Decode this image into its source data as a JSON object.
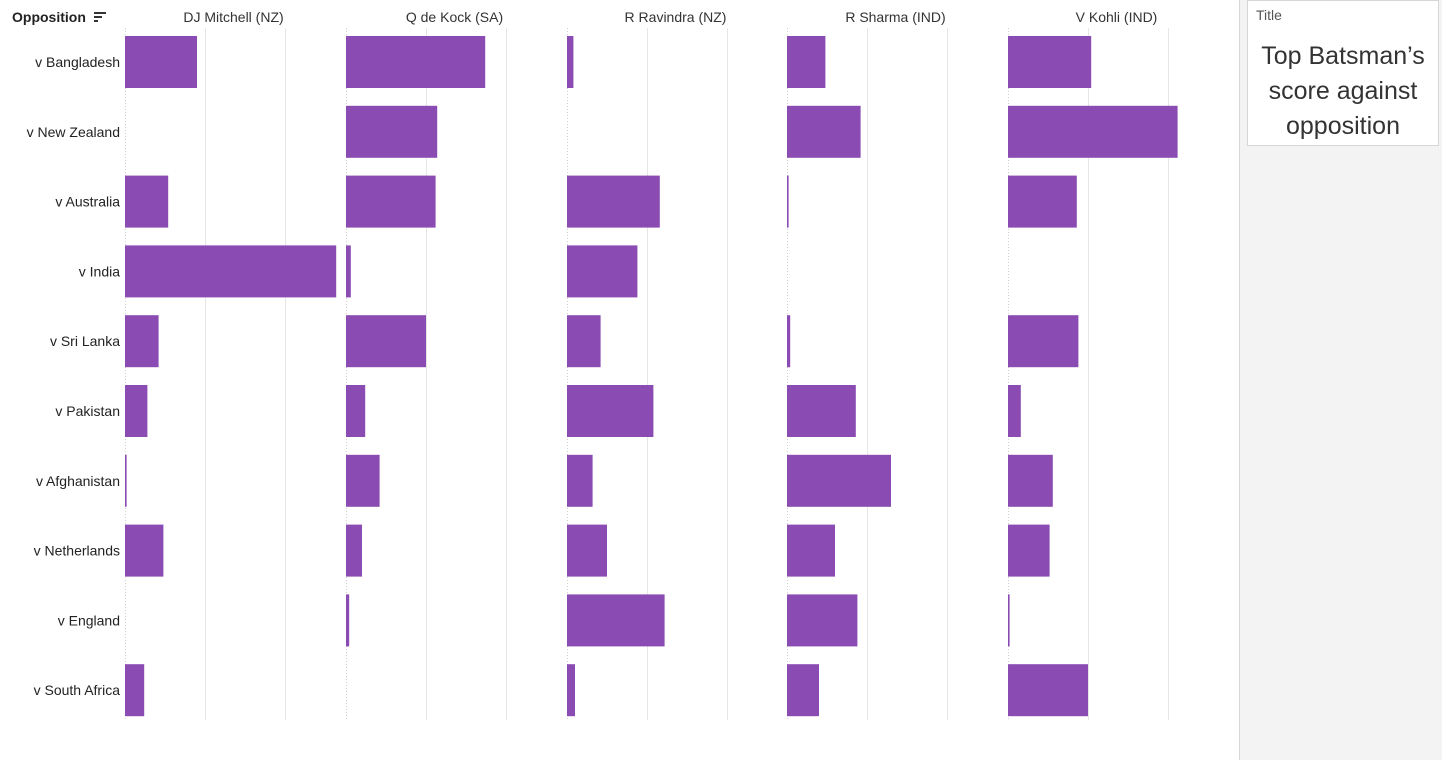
{
  "row_header": "Opposition",
  "panel": {
    "card_label": "Title",
    "card_text": "Top Batsman’s score against opposition"
  },
  "colors": {
    "bar": "#8a4bb2",
    "grid": "#e6e6e6",
    "axis": "#d0d0d0",
    "side_bg": "#f3f3f3"
  },
  "chart_data": {
    "type": "bar",
    "orientation": "horizontal",
    "columns": [
      "DJ Mitchell (NZ)",
      "Q de Kock (SA)",
      "R Ravindra (NZ)",
      "R Sharma (IND)",
      "V Kohli (IND)"
    ],
    "categories": [
      "v Bangladesh",
      "v New Zealand",
      "v Australia",
      "v India",
      "v Sri Lanka",
      "v Pakistan",
      "v Afghanistan",
      "v Netherlands",
      "v England",
      "v South Africa"
    ],
    "xlim": [
      0,
      140
    ],
    "gridlines": [
      0,
      50,
      100
    ],
    "series": [
      {
        "name": "DJ Mitchell (NZ)",
        "values": [
          45,
          null,
          27,
          132,
          21,
          14,
          1,
          24,
          null,
          12
        ]
      },
      {
        "name": "Q de Kock (SA)",
        "values": [
          87,
          57,
          56,
          3,
          50,
          12,
          21,
          10,
          2,
          null
        ]
      },
      {
        "name": "R Ravindra (NZ)",
        "values": [
          4,
          null,
          58,
          44,
          21,
          54,
          16,
          25,
          61,
          5
        ]
      },
      {
        "name": "R Sharma (IND)",
        "values": [
          24,
          46,
          1,
          null,
          2,
          43,
          65,
          30,
          44,
          20
        ]
      },
      {
        "name": "V Kohli (IND)",
        "values": [
          52,
          106,
          43,
          null,
          44,
          8,
          28,
          26,
          1,
          50
        ]
      }
    ],
    "grid": true,
    "legend": "none"
  }
}
